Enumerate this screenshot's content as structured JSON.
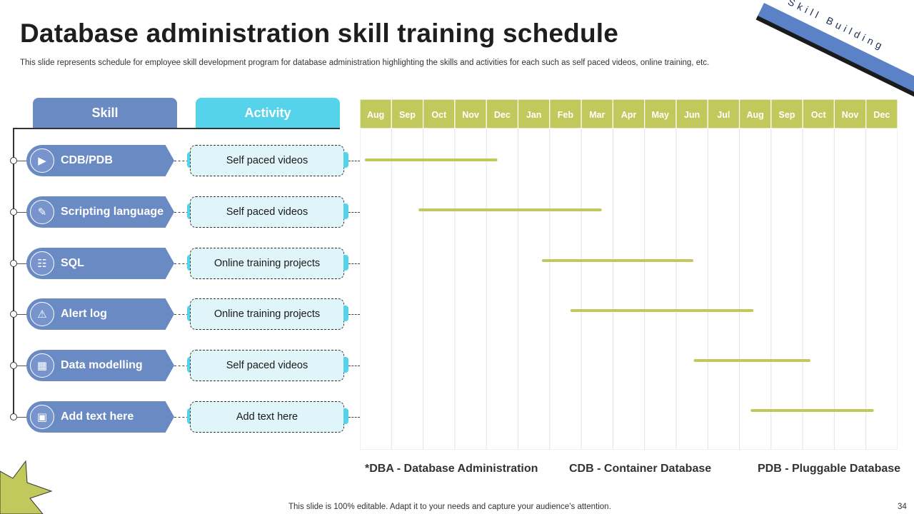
{
  "title": "Database administration skill training schedule",
  "subtitle": "This slide represents schedule for employee skill development program for database administration highlighting the skills and activities for each such as  self paced videos, online training, etc.",
  "ribbon_text": "Skill Building",
  "headers": {
    "skill": "Skill",
    "activity": "Activity"
  },
  "rows": [
    {
      "skill": "CDB/PDB",
      "icon": "video-icon",
      "activity": "Self paced videos"
    },
    {
      "skill": "Scripting language",
      "icon": "script-icon",
      "activity": "Self paced videos"
    },
    {
      "skill": "SQL",
      "icon": "database-icon",
      "activity": "Online training projects"
    },
    {
      "skill": "Alert log",
      "icon": "bell-icon",
      "activity": "Online training projects"
    },
    {
      "skill": "Data modelling",
      "icon": "model-icon",
      "activity": "Self paced videos"
    },
    {
      "skill": "Add text here",
      "icon": "presentation-icon",
      "activity": "Add text here"
    }
  ],
  "chart_data": {
    "type": "gantt",
    "categories": [
      "Aug",
      "Sep",
      "Oct",
      "Nov",
      "Dec",
      "Jan",
      "Feb",
      "Mar",
      "Apr",
      "May",
      "Jun",
      "Jul",
      "Aug",
      "Sep",
      "Oct",
      "Nov",
      "Dec"
    ],
    "bars": [
      {
        "row": "CDB/PDB",
        "start": 0.2,
        "end": 4.3
      },
      {
        "row": "Scripting language",
        "start": 1.9,
        "end": 7.6
      },
      {
        "row": "SQL",
        "start": 5.8,
        "end": 10.5
      },
      {
        "row": "Alert log",
        "start": 6.7,
        "end": 12.4
      },
      {
        "row": "Data modelling",
        "start": 10.6,
        "end": 14.2
      },
      {
        "row": "Add text here",
        "start": 12.4,
        "end": 16.2
      }
    ],
    "header_color": "#c2c95c",
    "bar_color": "#c2c95c",
    "grid_color": "#e3e3e3"
  },
  "notes": [
    "*DBA - Database Administration",
    "CDB - Container Database",
    "PDB - Pluggable Database"
  ],
  "footer": "This slide is 100% editable. Adapt it to your needs and capture your audience’s attention.",
  "page_number": "34"
}
